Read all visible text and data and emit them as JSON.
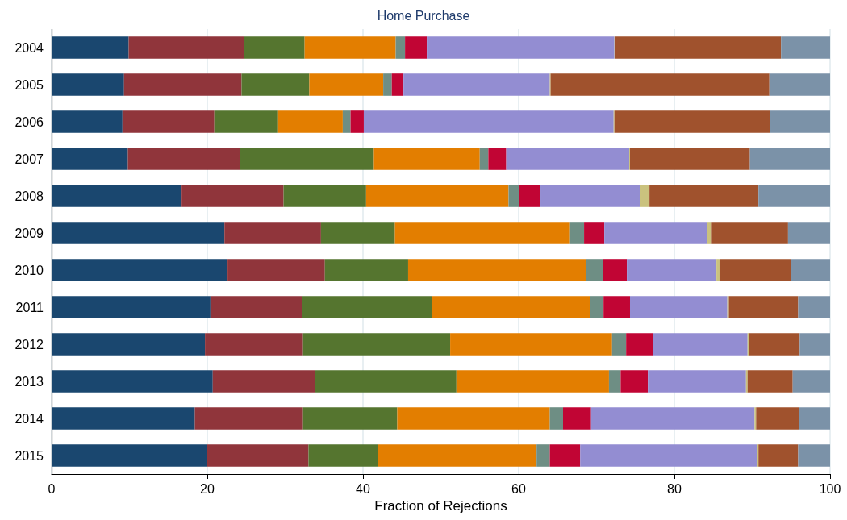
{
  "chart_data": {
    "type": "bar",
    "orientation": "horizontal",
    "stacked": true,
    "title": "Home Purchase",
    "xlabel": "Fraction of Rejections",
    "categories": [
      "2004",
      "2005",
      "2006",
      "2007",
      "2008",
      "2009",
      "2010",
      "2011",
      "2012",
      "2013",
      "2014",
      "2015"
    ],
    "xlim": [
      0,
      100
    ],
    "xticks": [
      0,
      20,
      40,
      60,
      80,
      100
    ],
    "grid": "x",
    "series": [
      {
        "color": "#1a476f",
        "values": [
          9.9,
          9.3,
          9.1,
          9.8,
          16.7,
          22.2,
          22.6,
          20.4,
          19.7,
          20.7,
          18.4,
          19.9
        ]
      },
      {
        "color": "#90353b",
        "values": [
          14.8,
          15.1,
          11.8,
          14.4,
          13.1,
          12.4,
          12.5,
          11.8,
          12.6,
          13.1,
          13.9,
          13.1
        ]
      },
      {
        "color": "#55752f",
        "values": [
          7.8,
          8.7,
          8.2,
          17.2,
          10.6,
          9.5,
          10.7,
          16.7,
          18.9,
          18.2,
          12.1,
          8.9
        ]
      },
      {
        "color": "#e37e00",
        "values": [
          11.7,
          9.5,
          8.3,
          13.6,
          18.3,
          22.4,
          22.9,
          20.3,
          20.8,
          19.6,
          19.6,
          20.4
        ]
      },
      {
        "color": "#6e8e84",
        "values": [
          1.2,
          1.1,
          1.0,
          1.1,
          1.3,
          1.9,
          2.1,
          1.7,
          1.8,
          1.5,
          1.7,
          1.7
        ]
      },
      {
        "color": "#c10534",
        "values": [
          2.8,
          1.5,
          1.7,
          2.3,
          2.8,
          2.6,
          3.1,
          3.4,
          3.5,
          3.5,
          3.6,
          3.9
        ]
      },
      {
        "color": "#938dd2",
        "values": [
          24.1,
          18.8,
          32.1,
          15.8,
          12.8,
          13.2,
          11.5,
          12.5,
          12.1,
          12.6,
          21.0,
          22.7
        ]
      },
      {
        "color": "#cac27e",
        "values": [
          0.1,
          0.1,
          0.1,
          0.1,
          1.2,
          0.6,
          0.4,
          0.2,
          0.2,
          0.2,
          0.2,
          0.2
        ]
      },
      {
        "color": "#a0522d",
        "values": [
          21.3,
          28.1,
          20.0,
          15.4,
          14.0,
          9.8,
          9.2,
          8.9,
          6.5,
          5.8,
          5.5,
          5.1
        ]
      },
      {
        "color": "#7b92a8",
        "values": [
          6.3,
          7.8,
          7.7,
          10.3,
          9.2,
          5.4,
          5.0,
          4.1,
          3.9,
          4.8,
          4.0,
          4.1
        ]
      }
    ]
  }
}
